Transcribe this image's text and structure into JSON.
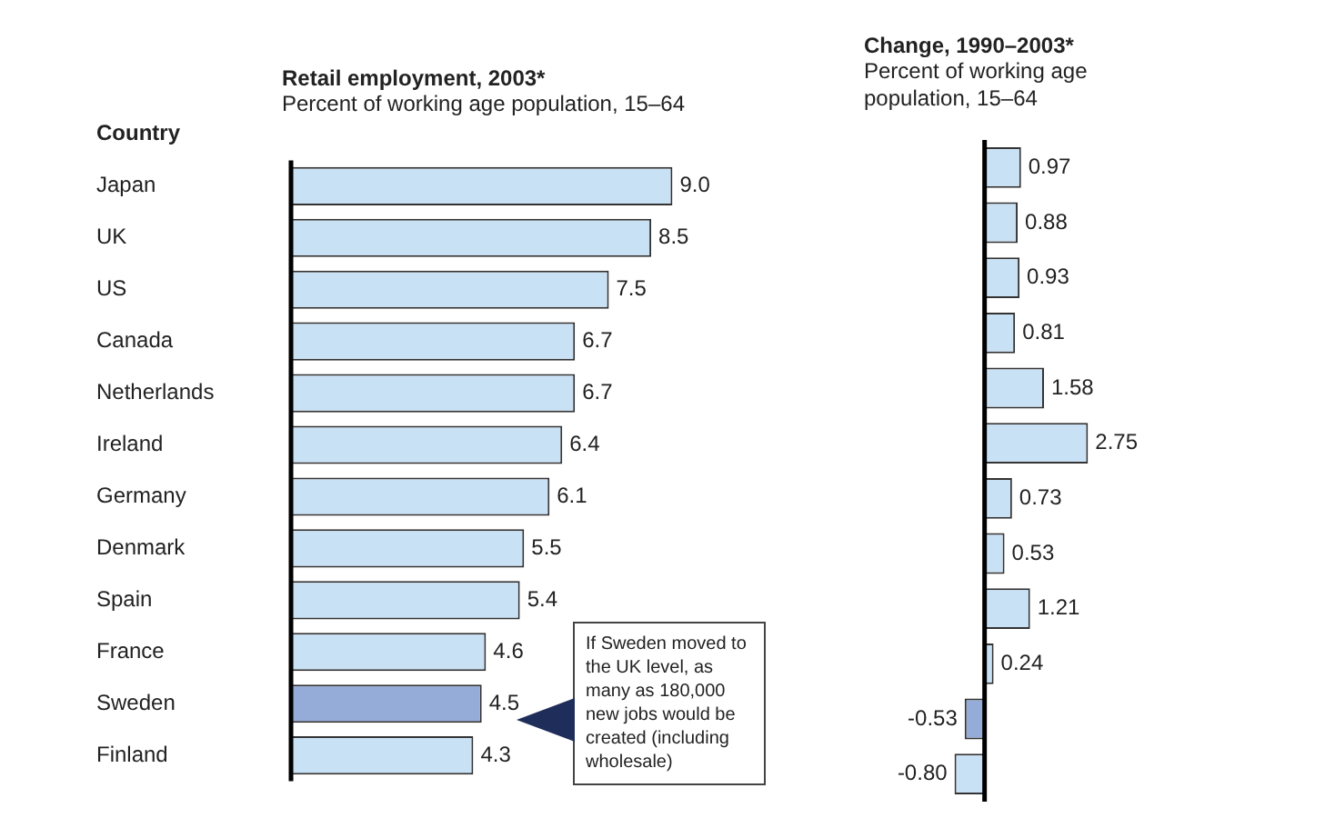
{
  "chart_data": [
    {
      "type": "bar",
      "orientation": "horizontal",
      "title": "Retail employment, 2003*",
      "subtitle": "Percent of working age population, 15–64",
      "ylabel": "Country",
      "categories": [
        "Japan",
        "UK",
        "US",
        "Canada",
        "Netherlands",
        "Ireland",
        "Germany",
        "Denmark",
        "Spain",
        "France",
        "Sweden",
        "Finland"
      ],
      "values": [
        9.0,
        8.5,
        7.5,
        6.7,
        6.7,
        6.4,
        6.1,
        5.5,
        5.4,
        4.6,
        4.5,
        4.3
      ],
      "value_labels": [
        "9.0",
        "8.5",
        "7.5",
        "6.7",
        "6.7",
        "6.4",
        "6.1",
        "5.5",
        "5.4",
        "4.6",
        "4.5",
        "4.3"
      ],
      "colors": [
        "#c9e1f5",
        "#c9e1f5",
        "#c9e1f5",
        "#c9e1f5",
        "#c9e1f5",
        "#c9e1f5",
        "#c9e1f5",
        "#c9e1f5",
        "#c9e1f5",
        "#c9e1f5",
        "#95acd8",
        "#c9e1f5"
      ],
      "tick_labels": "y",
      "grid": false,
      "legend": false,
      "annotations": [
        "If Sweden moved to the UK level, as many as 180,000 new jobs would be created (including wholesale)"
      ]
    },
    {
      "type": "bar",
      "orientation": "horizontal",
      "title": "Change, 1990–2003*",
      "subtitle": "Percent of working age population, 15–64",
      "categories": [
        null,
        null,
        null,
        null,
        null,
        null,
        null,
        null,
        null,
        null,
        null,
        null
      ],
      "values": [
        0.97,
        0.88,
        0.93,
        0.81,
        1.58,
        2.75,
        0.73,
        0.53,
        1.21,
        0.24,
        -0.53,
        -0.8
      ],
      "value_labels": [
        "0.97",
        "0.88",
        "0.93",
        "0.81",
        "1.58",
        "2.75",
        "0.73",
        "0.53",
        "1.21",
        "0.24",
        "-0.53",
        "-0.80"
      ],
      "colors": [
        "#c9e1f5",
        "#c9e1f5",
        "#c9e1f5",
        "#c9e1f5",
        "#c9e1f5",
        "#c9e1f5",
        "#c9e1f5",
        "#c9e1f5",
        "#c9e1f5",
        "#c9e1f5",
        "#95acd8",
        "#c9e1f5"
      ],
      "tick_labels": false,
      "grid": false,
      "legend": false
    }
  ]
}
